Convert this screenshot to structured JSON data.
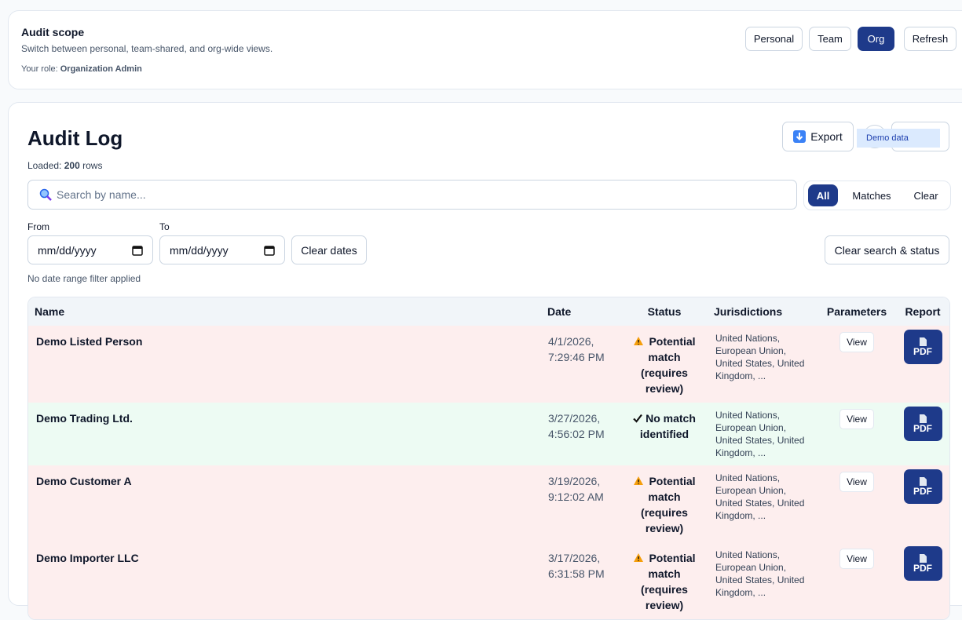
{
  "scope": {
    "title": "Audit scope",
    "subtitle": "Switch between personal, team-shared, and org-wide views.",
    "role_label": "Your role:",
    "role": "Organization Admin",
    "buttons": [
      "Personal",
      "Team",
      "Org",
      "Refresh"
    ]
  },
  "log": {
    "title": "Audit Log",
    "export": "Export",
    "demo": "Demo data",
    "loaded_label": "Loaded:",
    "loaded_count": 200,
    "loaded_unit": "rows",
    "search_placeholder": "Search by name...",
    "filters": [
      "All",
      "Matches",
      "Clear"
    ],
    "from": "From",
    "to": "To",
    "date_placeholder": "mm/dd/yyyy",
    "clear_dates": "Clear dates",
    "clear_search": "Clear search & status",
    "date_note": "No date range filter applied"
  },
  "table": {
    "headers": [
      "Name",
      "Date",
      "Status",
      "Jurisdictions",
      "Parameters",
      "Report"
    ],
    "rows": [
      {
        "name": "Demo Listed Person",
        "date": "4/1/2026, 7:29:46 PM",
        "status": "Potential match (requires review)",
        "tone": "match",
        "jurisdictions": "United Nations, European Union, United States, United Kingdom, ...",
        "view": "View",
        "report": "PDF"
      },
      {
        "name": "Demo Trading Ltd.",
        "date": "3/27/2026, 4:56:02 PM",
        "status": "No match identified",
        "tone": "clear",
        "jurisdictions": "United Nations, European Union, United States, United Kingdom, ...",
        "view": "View",
        "report": "PDF"
      },
      {
        "name": "Demo Customer A",
        "date": "3/19/2026, 9:12:02 AM",
        "status": "Potential match (requires review)",
        "tone": "match",
        "jurisdictions": "United Nations, European Union, United States, United Kingdom, ...",
        "view": "View",
        "report": "PDF"
      },
      {
        "name": "Demo Importer LLC",
        "date": "3/17/2026, 6:31:58 PM",
        "status": "Potential match (requires review)",
        "tone": "match",
        "jurisdictions": "United Nations, European Union, United States, United Kingdom, ...",
        "view": "View",
        "report": "PDF"
      }
    ]
  }
}
